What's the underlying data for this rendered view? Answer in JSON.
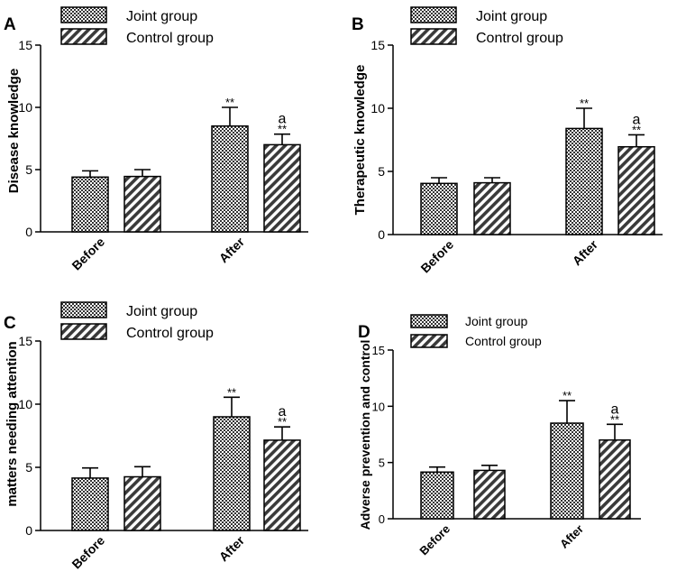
{
  "chart_data": [
    {
      "type": "bar",
      "panel_label": "A",
      "categories": [
        "Before",
        "After"
      ],
      "ylabel": "Disease knowledge",
      "xlabel": "",
      "ylim": [
        0,
        15
      ],
      "yticks": [
        "0",
        "5",
        "10",
        "15"
      ],
      "series": [
        {
          "name": "Joint group",
          "values": [
            4.4,
            8.5
          ],
          "errors": [
            0.5,
            1.5
          ],
          "pattern": "checker"
        },
        {
          "name": "Control group",
          "values": [
            4.45,
            7.0
          ],
          "errors": [
            0.55,
            0.85
          ],
          "pattern": "diagonal"
        }
      ],
      "annotations": [
        {
          "category": "After",
          "series": "Joint group",
          "text": "**"
        },
        {
          "category": "After",
          "series": "Control group",
          "text": "**"
        },
        {
          "category": "After",
          "series": "Control group",
          "text": "a"
        }
      ],
      "legend_position": "top"
    },
    {
      "type": "bar",
      "panel_label": "B",
      "categories": [
        "Before",
        "After"
      ],
      "ylabel": "Therapeutic knowledge",
      "xlabel": "",
      "ylim": [
        0,
        15
      ],
      "yticks": [
        "0",
        "5",
        "10",
        "15"
      ],
      "series": [
        {
          "name": "Joint group",
          "values": [
            4.05,
            8.4
          ],
          "errors": [
            0.45,
            1.6
          ],
          "pattern": "checker"
        },
        {
          "name": "Control group",
          "values": [
            4.1,
            6.95
          ],
          "errors": [
            0.4,
            0.95
          ],
          "pattern": "diagonal"
        }
      ],
      "annotations": [
        {
          "category": "After",
          "series": "Joint group",
          "text": "**"
        },
        {
          "category": "After",
          "series": "Control group",
          "text": "**"
        },
        {
          "category": "After",
          "series": "Control group",
          "text": "a"
        }
      ],
      "legend_position": "top"
    },
    {
      "type": "bar",
      "panel_label": "C",
      "categories": [
        "Before",
        "After"
      ],
      "ylabel": "matters needing attention",
      "xlabel": "",
      "ylim": [
        0,
        15
      ],
      "yticks": [
        "0",
        "5",
        "10",
        "15"
      ],
      "series": [
        {
          "name": "Joint group",
          "values": [
            4.15,
            9.0
          ],
          "errors": [
            0.8,
            1.55
          ],
          "pattern": "checker"
        },
        {
          "name": "Control group",
          "values": [
            4.25,
            7.15
          ],
          "errors": [
            0.8,
            1.05
          ],
          "pattern": "diagonal"
        }
      ],
      "annotations": [
        {
          "category": "After",
          "series": "Joint group",
          "text": "**"
        },
        {
          "category": "After",
          "series": "Control group",
          "text": "**"
        },
        {
          "category": "After",
          "series": "Control group",
          "text": "a"
        }
      ],
      "legend_position": "top"
    },
    {
      "type": "bar",
      "panel_label": "D",
      "categories": [
        "Before",
        "After"
      ],
      "ylabel": "Adverse prevention and control",
      "xlabel": "",
      "ylim": [
        0,
        15
      ],
      "yticks": [
        "0",
        "5",
        "10",
        "15"
      ],
      "series": [
        {
          "name": "Joint group",
          "values": [
            4.15,
            8.5
          ],
          "errors": [
            0.45,
            2.0
          ],
          "pattern": "checker"
        },
        {
          "name": "Control group",
          "values": [
            4.3,
            7.0
          ],
          "errors": [
            0.45,
            1.4
          ],
          "pattern": "diagonal"
        }
      ],
      "annotations": [
        {
          "category": "After",
          "series": "Joint group",
          "text": "**"
        },
        {
          "category": "After",
          "series": "Control group",
          "text": "**"
        },
        {
          "category": "After",
          "series": "Control group",
          "text": "a"
        }
      ],
      "legend_position": "top"
    }
  ]
}
